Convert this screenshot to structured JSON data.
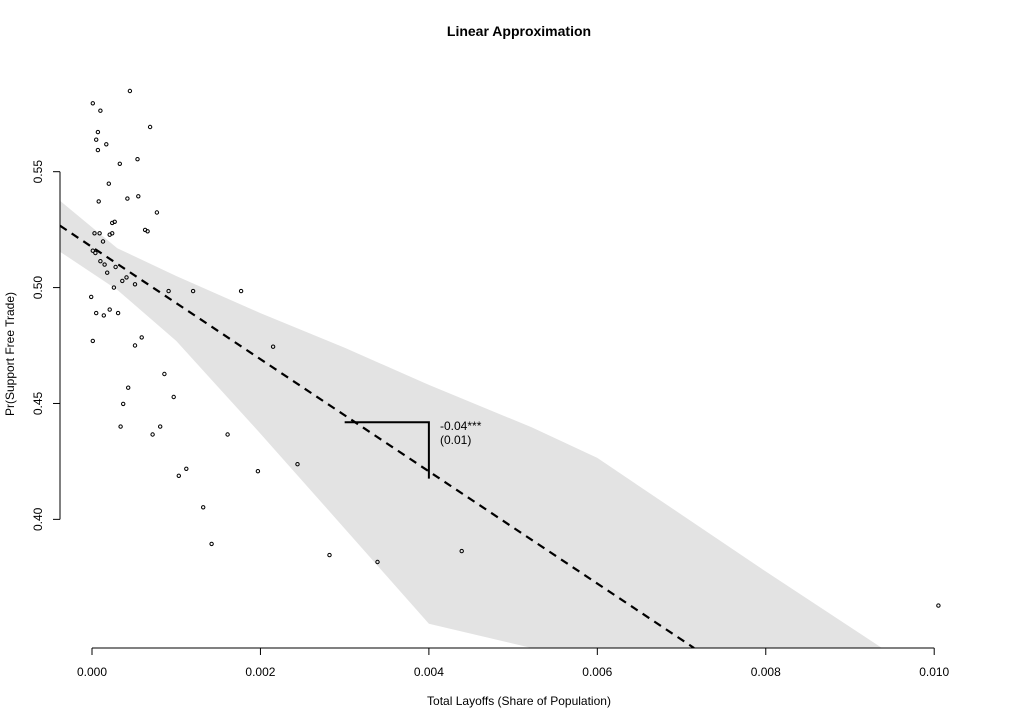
{
  "chart_data": {
    "type": "scatter",
    "title": "Linear Approximation",
    "xlabel": "Total Layoffs (Share of Population)",
    "ylabel": "Pr(Support Free Trade)",
    "xlim": [
      -0.00038,
      0.01052
    ],
    "ylim": [
      0.3445,
      0.5956
    ],
    "x_ticks": [
      "0.000",
      "0.002",
      "0.004",
      "0.006",
      "0.008",
      "0.010"
    ],
    "y_ticks": [
      "0.40",
      "0.45",
      "0.50",
      "0.55"
    ],
    "grid": false,
    "fit_line": {
      "intercept": 0.5175,
      "slope": -24.2,
      "style": "dashed"
    },
    "confidence_band": [
      {
        "x": -0.00038,
        "lower": 0.5155,
        "upper": 0.5375
      },
      {
        "x": 0.0003,
        "lower": 0.499,
        "upper": 0.517
      },
      {
        "x": 0.001,
        "lower": 0.477,
        "upper": 0.505
      },
      {
        "x": 0.002,
        "lower": 0.437,
        "upper": 0.489
      },
      {
        "x": 0.003,
        "lower": 0.396,
        "upper": 0.474
      },
      {
        "x": 0.004,
        "lower": 0.355,
        "upper": 0.458
      },
      {
        "x": 0.00522,
        "lower": 0.3445,
        "upper": 0.4397
      },
      {
        "x": 0.006,
        "lower": 0.3445,
        "upper": 0.4265
      },
      {
        "x": 0.008,
        "lower": 0.3445,
        "upper": 0.3775
      },
      {
        "x": 0.00938,
        "lower": 0.3445,
        "upper": 0.3445
      }
    ],
    "slope_triangle": {
      "x0": 0.003,
      "x1": 0.004,
      "y_top": 0.4419,
      "y_bottom": 0.4176
    },
    "annotation": {
      "estimate": "-0.04***",
      "se": "(0.01)"
    },
    "points": [
      [
        1e-05,
        0.5795
      ],
      [
        0.00045,
        0.5848
      ],
      [
        0.0001,
        0.5763
      ],
      [
        0.00069,
        0.5693
      ],
      [
        7e-05,
        0.5671
      ],
      [
        5e-05,
        0.5638
      ],
      [
        0.00017,
        0.5618
      ],
      [
        7e-05,
        0.5593
      ],
      [
        0.00054,
        0.5554
      ],
      [
        0.00033,
        0.5534
      ],
      [
        0.0002,
        0.5448
      ],
      [
        0.00055,
        0.5394
      ],
      [
        0.00042,
        0.5384
      ],
      [
        8e-05,
        0.5372
      ],
      [
        0.00077,
        0.5324
      ],
      [
        0.00027,
        0.5284
      ],
      [
        0.00024,
        0.5279
      ],
      [
        0.00063,
        0.5249
      ],
      [
        0.00066,
        0.5243
      ],
      [
        3e-05,
        0.5234
      ],
      [
        9e-05,
        0.5234
      ],
      [
        0.00024,
        0.5234
      ],
      [
        0.00021,
        0.5228
      ],
      [
        0.00013,
        0.5199
      ],
      [
        1e-05,
        0.5159
      ],
      [
        4e-05,
        0.5149
      ],
      [
        0.0001,
        0.5114
      ],
      [
        0.00015,
        0.5099
      ],
      [
        0.00028,
        0.5089
      ],
      [
        0.00018,
        0.5064
      ],
      [
        0.00041,
        0.5044
      ],
      [
        0.00036,
        0.5029
      ],
      [
        0.00051,
        0.5014
      ],
      [
        0.00026,
        0.5
      ],
      [
        0.00091,
        0.4985
      ],
      [
        0.0012,
        0.4985
      ],
      [
        0.00177,
        0.4985
      ],
      [
        -1e-05,
        0.496
      ],
      [
        0.00021,
        0.4905
      ],
      [
        5e-05,
        0.489
      ],
      [
        0.00031,
        0.489
      ],
      [
        0.00014,
        0.488
      ],
      [
        0.00059,
        0.4785
      ],
      [
        1e-05,
        0.477
      ],
      [
        0.00051,
        0.475
      ],
      [
        0.00215,
        0.4745
      ],
      [
        0.00086,
        0.4627
      ],
      [
        0.00043,
        0.4568
      ],
      [
        0.00097,
        0.4528
      ],
      [
        0.00037,
        0.4498
      ],
      [
        0.00034,
        0.44
      ],
      [
        0.00081,
        0.44
      ],
      [
        0.00072,
        0.4366
      ],
      [
        0.00161,
        0.4366
      ],
      [
        0.00244,
        0.4238
      ],
      [
        0.00112,
        0.4218
      ],
      [
        0.00197,
        0.4208
      ],
      [
        0.00103,
        0.4188
      ],
      [
        0.00132,
        0.4052
      ],
      [
        0.00142,
        0.3894
      ],
      [
        0.00282,
        0.3846
      ],
      [
        0.00339,
        0.3816
      ],
      [
        0.00439,
        0.3863
      ],
      [
        0.01005,
        0.3628
      ]
    ]
  }
}
